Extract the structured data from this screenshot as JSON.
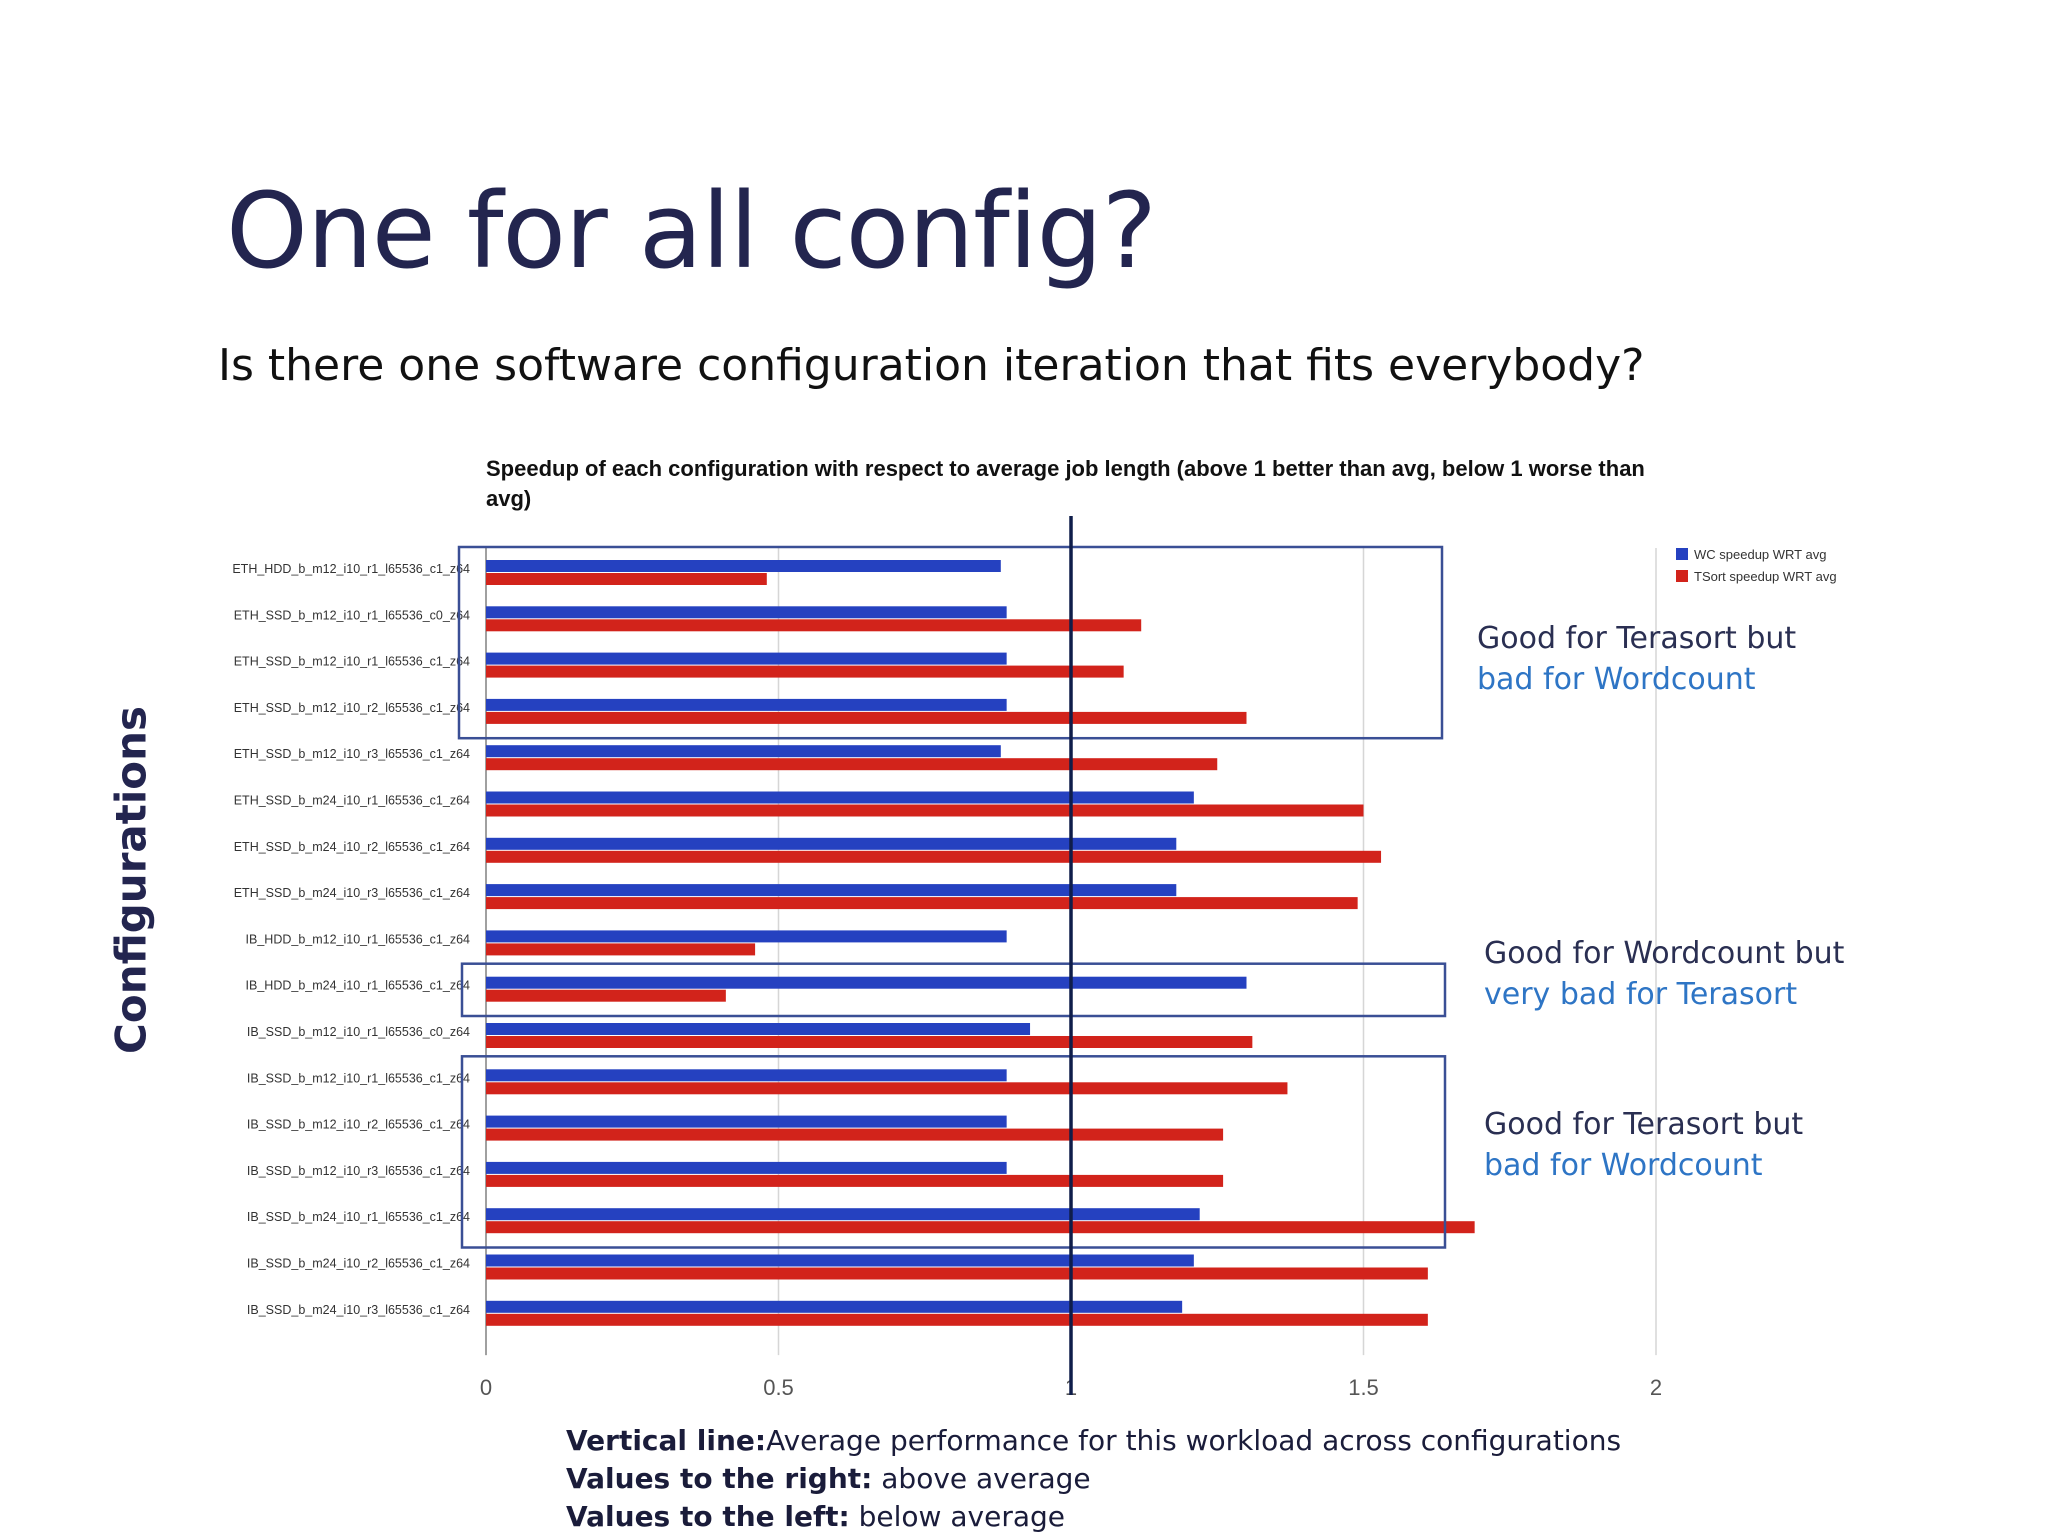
{
  "slide": {
    "title": "One for all config?",
    "subtitle": "Is there one software configuration iteration that fits everybody?"
  },
  "axis_title": "Configurations",
  "annotations": [
    {
      "line1": "Good for Terasort but",
      "line2": "bad for Wordcount"
    },
    {
      "line1": "Good for Wordcount  but",
      "line2": "very bad for Terasort"
    },
    {
      "line1": "Good for Terasort but",
      "line2": "bad for Wordcount"
    }
  ],
  "notes": [
    {
      "label": "Vertical line:",
      "text": "Average performance for this workload across configurations"
    },
    {
      "label": "Values to the right:",
      "text": " above average"
    },
    {
      "label": "Values to the left:",
      "text": "   below average"
    }
  ],
  "colors": {
    "wc": "#2541c0",
    "tsort": "#d2231b",
    "box": "#3a4f95",
    "avg_line": "#0f1d4a"
  },
  "chart_data": {
    "type": "bar",
    "orientation": "horizontal",
    "title": "Speedup of each configuration with respect to average job length (above 1 better than avg, below 1 worse than avg)",
    "categories": [
      "ETH_HDD_b_m12_i10_r1_l65536_c1_z64",
      "ETH_SSD_b_m12_i10_r1_l65536_c0_z64",
      "ETH_SSD_b_m12_i10_r1_l65536_c1_z64",
      "ETH_SSD_b_m12_i10_r2_l65536_c1_z64",
      "ETH_SSD_b_m12_i10_r3_l65536_c1_z64",
      "ETH_SSD_b_m24_i10_r1_l65536_c1_z64",
      "ETH_SSD_b_m24_i10_r2_l65536_c1_z64",
      "ETH_SSD_b_m24_i10_r3_l65536_c1_z64",
      "IB_HDD_b_m12_i10_r1_l65536_c1_z64",
      "IB_HDD_b_m24_i10_r1_l65536_c1_z64",
      "IB_SSD_b_m12_i10_r1_l65536_c0_z64",
      "IB_SSD_b_m12_i10_r1_l65536_c1_z64",
      "IB_SSD_b_m12_i10_r2_l65536_c1_z64",
      "IB_SSD_b_m12_i10_r3_l65536_c1_z64",
      "IB_SSD_b_m24_i10_r1_l65536_c1_z64",
      "IB_SSD_b_m24_i10_r2_l65536_c1_z64",
      "IB_SSD_b_m24_i10_r3_l65536_c1_z64"
    ],
    "series": [
      {
        "name": "WC speedup WRT avg",
        "color": "#2541c0",
        "values": [
          0.88,
          0.89,
          0.89,
          0.89,
          0.88,
          1.21,
          1.18,
          1.18,
          0.89,
          1.3,
          0.93,
          0.89,
          0.89,
          0.89,
          1.22,
          1.21,
          1.19
        ]
      },
      {
        "name": "TSort speedup WRT avg",
        "color": "#d2231b",
        "values": [
          0.48,
          1.12,
          1.09,
          1.3,
          1.25,
          1.5,
          1.53,
          1.49,
          0.46,
          0.41,
          1.31,
          1.37,
          1.26,
          1.26,
          1.69,
          1.61,
          1.61
        ]
      }
    ],
    "xlim": [
      0,
      2
    ],
    "xticks": [
      0,
      0.5,
      1,
      1.5,
      2
    ],
    "xtick_labels": [
      "0",
      "0.5",
      "1",
      "1.5",
      "2"
    ],
    "reference_line": 1,
    "grid": true,
    "legend": "top-right",
    "highlight_groups": [
      [
        0,
        3
      ],
      [
        9,
        9
      ],
      [
        11,
        14
      ]
    ]
  }
}
